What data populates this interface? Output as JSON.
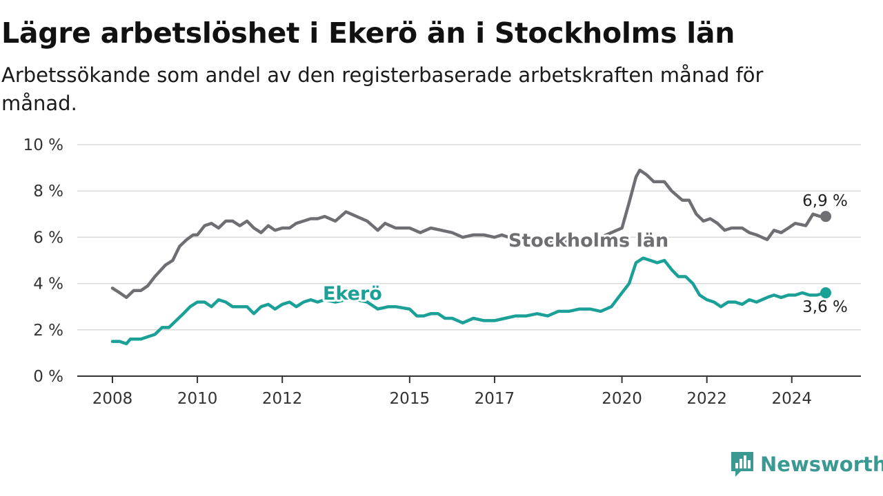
{
  "header": {
    "title": "Lägre arbetslöshet i Ekerö än i Stockholms län",
    "subtitle": "Arbetssökande som andel av den registerbaserade arbetskraften månad för månad."
  },
  "brand": {
    "name": "Newsworthy",
    "icon": "newsworthy-chart-icon",
    "color": "#3a9a93"
  },
  "chart_data": {
    "type": "line",
    "x_unit": "year",
    "xlim": [
      2008,
      2025.7
    ],
    "ylim": [
      0,
      10
    ],
    "yticks": [
      0,
      2,
      4,
      6,
      8,
      10
    ],
    "ytick_labels": [
      "0 %",
      "2 %",
      "4 %",
      "6 %",
      "8 %",
      "10 %"
    ],
    "xticks": [
      2008,
      2010,
      2012,
      2015,
      2017,
      2020,
      2022,
      2024
    ],
    "xtick_labels": [
      "2008",
      "2010",
      "2012",
      "2015",
      "2017",
      "2020",
      "2022",
      "2024"
    ],
    "grid": true,
    "series": [
      {
        "name": "Stockholms län",
        "color": "#6e6e73",
        "end_label": "6,9 %",
        "points": [
          [
            2008.0,
            3.8
          ],
          [
            2008.17,
            3.6
          ],
          [
            2008.33,
            3.4
          ],
          [
            2008.5,
            3.7
          ],
          [
            2008.67,
            3.7
          ],
          [
            2008.83,
            3.9
          ],
          [
            2009.0,
            4.3
          ],
          [
            2009.25,
            4.8
          ],
          [
            2009.42,
            5.0
          ],
          [
            2009.58,
            5.6
          ],
          [
            2009.75,
            5.9
          ],
          [
            2009.9,
            6.1
          ],
          [
            2010.0,
            6.1
          ],
          [
            2010.17,
            6.5
          ],
          [
            2010.33,
            6.6
          ],
          [
            2010.5,
            6.4
          ],
          [
            2010.67,
            6.7
          ],
          [
            2010.83,
            6.7
          ],
          [
            2011.0,
            6.5
          ],
          [
            2011.17,
            6.7
          ],
          [
            2011.33,
            6.4
          ],
          [
            2011.5,
            6.2
          ],
          [
            2011.67,
            6.5
          ],
          [
            2011.83,
            6.3
          ],
          [
            2012.0,
            6.4
          ],
          [
            2012.17,
            6.4
          ],
          [
            2012.33,
            6.6
          ],
          [
            2012.5,
            6.7
          ],
          [
            2012.67,
            6.8
          ],
          [
            2012.83,
            6.8
          ],
          [
            2013.0,
            6.9
          ],
          [
            2013.25,
            6.7
          ],
          [
            2013.5,
            7.1
          ],
          [
            2013.75,
            6.9
          ],
          [
            2014.0,
            6.7
          ],
          [
            2014.25,
            6.3
          ],
          [
            2014.42,
            6.6
          ],
          [
            2014.67,
            6.4
          ],
          [
            2015.0,
            6.4
          ],
          [
            2015.25,
            6.2
          ],
          [
            2015.5,
            6.4
          ],
          [
            2015.75,
            6.3
          ],
          [
            2016.0,
            6.2
          ],
          [
            2016.25,
            6.0
          ],
          [
            2016.5,
            6.1
          ],
          [
            2016.75,
            6.1
          ],
          [
            2017.0,
            6.0
          ],
          [
            2017.17,
            6.1
          ],
          [
            2017.33,
            6.0
          ],
          [
            2017.5,
            5.8
          ],
          [
            2017.75,
            5.7
          ],
          [
            2018.0,
            5.7
          ],
          [
            2018.5,
            5.8
          ],
          [
            2019.0,
            5.9
          ],
          [
            2019.5,
            6.0
          ],
          [
            2019.75,
            6.2
          ],
          [
            2020.0,
            6.4
          ],
          [
            2020.17,
            7.5
          ],
          [
            2020.33,
            8.6
          ],
          [
            2020.42,
            8.9
          ],
          [
            2020.58,
            8.7
          ],
          [
            2020.75,
            8.4
          ],
          [
            2021.0,
            8.4
          ],
          [
            2021.17,
            8.0
          ],
          [
            2021.42,
            7.6
          ],
          [
            2021.58,
            7.6
          ],
          [
            2021.75,
            7.0
          ],
          [
            2021.92,
            6.7
          ],
          [
            2022.08,
            6.8
          ],
          [
            2022.25,
            6.6
          ],
          [
            2022.42,
            6.3
          ],
          [
            2022.58,
            6.4
          ],
          [
            2022.83,
            6.4
          ],
          [
            2023.0,
            6.2
          ],
          [
            2023.17,
            6.1
          ],
          [
            2023.42,
            5.9
          ],
          [
            2023.58,
            6.3
          ],
          [
            2023.75,
            6.2
          ],
          [
            2023.92,
            6.4
          ],
          [
            2024.08,
            6.6
          ],
          [
            2024.33,
            6.5
          ],
          [
            2024.5,
            7.0
          ],
          [
            2024.67,
            6.9
          ],
          [
            2024.8,
            6.9
          ]
        ]
      },
      {
        "name": "Ekerö",
        "color": "#1aa096",
        "end_label": "3,6 %",
        "points": [
          [
            2008.0,
            1.5
          ],
          [
            2008.17,
            1.5
          ],
          [
            2008.33,
            1.4
          ],
          [
            2008.42,
            1.6
          ],
          [
            2008.67,
            1.6
          ],
          [
            2008.83,
            1.7
          ],
          [
            2009.0,
            1.8
          ],
          [
            2009.17,
            2.1
          ],
          [
            2009.33,
            2.1
          ],
          [
            2009.5,
            2.4
          ],
          [
            2009.67,
            2.7
          ],
          [
            2009.83,
            3.0
          ],
          [
            2010.0,
            3.2
          ],
          [
            2010.17,
            3.2
          ],
          [
            2010.33,
            3.0
          ],
          [
            2010.5,
            3.3
          ],
          [
            2010.67,
            3.2
          ],
          [
            2010.83,
            3.0
          ],
          [
            2011.0,
            3.0
          ],
          [
            2011.17,
            3.0
          ],
          [
            2011.33,
            2.7
          ],
          [
            2011.5,
            3.0
          ],
          [
            2011.67,
            3.1
          ],
          [
            2011.83,
            2.9
          ],
          [
            2012.0,
            3.1
          ],
          [
            2012.17,
            3.2
          ],
          [
            2012.33,
            3.0
          ],
          [
            2012.5,
            3.2
          ],
          [
            2012.67,
            3.3
          ],
          [
            2012.83,
            3.2
          ],
          [
            2013.0,
            3.3
          ],
          [
            2013.25,
            3.2
          ],
          [
            2013.5,
            3.3
          ],
          [
            2013.75,
            3.3
          ],
          [
            2014.0,
            3.2
          ],
          [
            2014.25,
            2.9
          ],
          [
            2014.5,
            3.0
          ],
          [
            2014.67,
            3.0
          ],
          [
            2015.0,
            2.9
          ],
          [
            2015.17,
            2.6
          ],
          [
            2015.33,
            2.6
          ],
          [
            2015.5,
            2.7
          ],
          [
            2015.67,
            2.7
          ],
          [
            2015.83,
            2.5
          ],
          [
            2016.0,
            2.5
          ],
          [
            2016.25,
            2.3
          ],
          [
            2016.5,
            2.5
          ],
          [
            2016.75,
            2.4
          ],
          [
            2017.0,
            2.4
          ],
          [
            2017.25,
            2.5
          ],
          [
            2017.5,
            2.6
          ],
          [
            2017.75,
            2.6
          ],
          [
            2018.0,
            2.7
          ],
          [
            2018.25,
            2.6
          ],
          [
            2018.5,
            2.8
          ],
          [
            2018.75,
            2.8
          ],
          [
            2019.0,
            2.9
          ],
          [
            2019.25,
            2.9
          ],
          [
            2019.5,
            2.8
          ],
          [
            2019.75,
            3.0
          ],
          [
            2020.0,
            3.6
          ],
          [
            2020.17,
            4.0
          ],
          [
            2020.33,
            4.9
          ],
          [
            2020.5,
            5.1
          ],
          [
            2020.67,
            5.0
          ],
          [
            2020.83,
            4.9
          ],
          [
            2021.0,
            5.0
          ],
          [
            2021.17,
            4.6
          ],
          [
            2021.33,
            4.3
          ],
          [
            2021.5,
            4.3
          ],
          [
            2021.67,
            4.0
          ],
          [
            2021.83,
            3.5
          ],
          [
            2022.0,
            3.3
          ],
          [
            2022.17,
            3.2
          ],
          [
            2022.33,
            3.0
          ],
          [
            2022.5,
            3.2
          ],
          [
            2022.67,
            3.2
          ],
          [
            2022.83,
            3.1
          ],
          [
            2023.0,
            3.3
          ],
          [
            2023.17,
            3.2
          ],
          [
            2023.42,
            3.4
          ],
          [
            2023.58,
            3.5
          ],
          [
            2023.75,
            3.4
          ],
          [
            2023.92,
            3.5
          ],
          [
            2024.08,
            3.5
          ],
          [
            2024.25,
            3.6
          ],
          [
            2024.42,
            3.5
          ],
          [
            2024.58,
            3.5
          ],
          [
            2024.8,
            3.6
          ]
        ]
      }
    ]
  }
}
